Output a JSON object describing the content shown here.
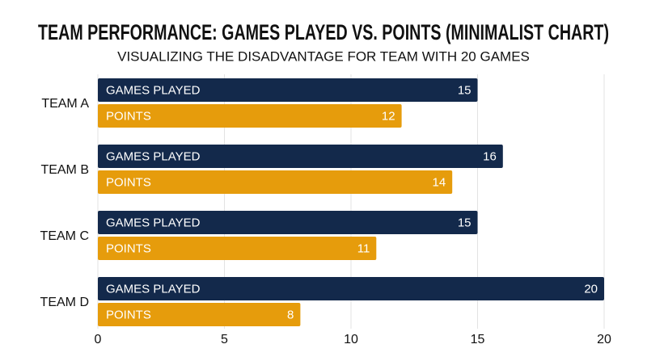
{
  "chart_data": {
    "type": "bar",
    "orientation": "horizontal",
    "title": "TEAM PERFORMANCE: GAMES PLAYED VS. POINTS (MINIMALIST CHART)",
    "subtitle": "VISUALIZING THE DISADVANTAGE FOR TEAM WITH 20 GAMES",
    "categories": [
      "TEAM A",
      "TEAM B",
      "TEAM C",
      "TEAM D"
    ],
    "series": [
      {
        "name": "GAMES PLAYED",
        "color": "#13294b",
        "values": [
          15,
          16,
          15,
          20
        ]
      },
      {
        "name": "POINTS",
        "color": "#e69c0c",
        "values": [
          12,
          14,
          11,
          8
        ]
      }
    ],
    "xlim": [
      0,
      20
    ],
    "xticks": [
      0,
      5,
      10,
      15,
      20
    ],
    "grid": true
  }
}
